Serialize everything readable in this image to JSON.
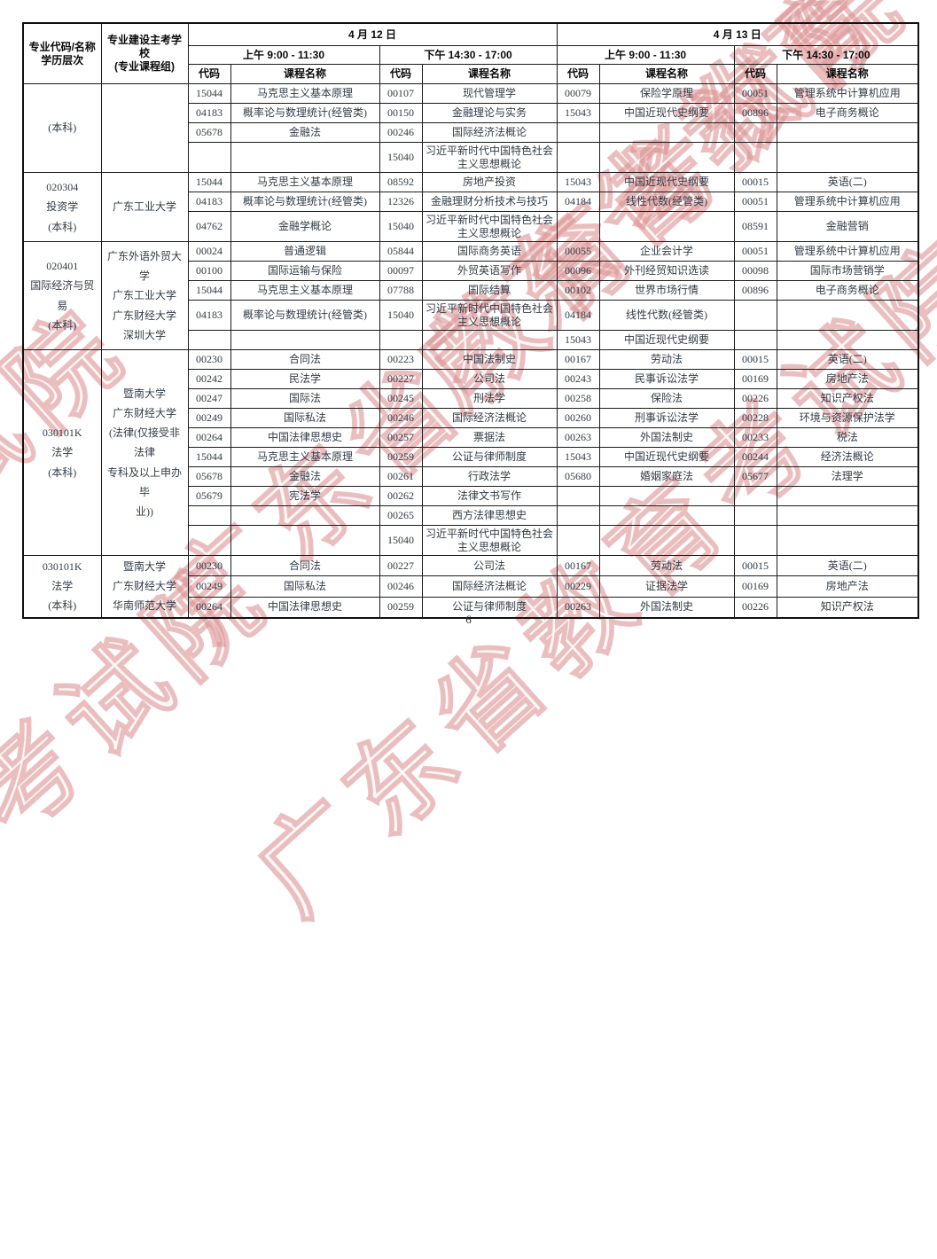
{
  "document": {
    "page_number": "6"
  },
  "watermark": {
    "text": "广东省教育考试院",
    "color": "#db9090"
  },
  "table": {
    "headers": {
      "major_line1": "专业代码/名称",
      "major_line2": "学历层次",
      "school_line1": "专业建设主考学校",
      "school_line2": "(专业课程组)",
      "date_apr12": "4 月 12 日",
      "date_apr13": "4 月 13 日",
      "session_am_label": "上午",
      "session_am_time": "9:00 - 11:30",
      "session_pm_label": "下午",
      "session_pm_time": "14:30 - 17:00",
      "code_label": "代码",
      "course_label": "课程名称"
    },
    "groups": [
      {
        "major": [
          "(本科)"
        ],
        "major_align": "top",
        "school": [],
        "rows": [
          {
            "cells": [
              [
                "15044",
                "马克思主义基本原理"
              ],
              [
                "00107",
                "现代管理学"
              ],
              [
                "00079",
                "保险学原理"
              ],
              [
                "00051",
                "管理系统中计算机应用"
              ]
            ]
          },
          {
            "cells": [
              [
                "04183",
                "概率论与数理统计(经管类)"
              ],
              [
                "00150",
                "金融理论与实务"
              ],
              [
                "15043",
                "中国近现代史纲要"
              ],
              [
                "00896",
                "电子商务概论"
              ]
            ]
          },
          {
            "cells": [
              [
                "05678",
                "金融法"
              ],
              [
                "00246",
                "国际经济法概论"
              ],
              [
                "",
                ""
              ],
              [
                "",
                ""
              ]
            ]
          },
          {
            "tall": true,
            "cells": [
              [
                "",
                ""
              ],
              [
                "15040",
                "习近平新时代中国特色社会主义思想概论"
              ],
              [
                "",
                ""
              ],
              [
                "",
                ""
              ]
            ]
          }
        ]
      },
      {
        "major": [
          "020304",
          "投资学",
          "(本科)"
        ],
        "school": [
          "广东工业大学"
        ],
        "rows": [
          {
            "cells": [
              [
                "15044",
                "马克思主义基本原理"
              ],
              [
                "08592",
                "房地产投资"
              ],
              [
                "15043",
                "中国近现代史纲要"
              ],
              [
                "00015",
                "英语(二)"
              ]
            ]
          },
          {
            "cells": [
              [
                "04183",
                "概率论与数理统计(经管类)"
              ],
              [
                "12326",
                "金融理财分析技术与技巧"
              ],
              [
                "04184",
                "线性代数(经管类)"
              ],
              [
                "00051",
                "管理系统中计算机应用"
              ]
            ]
          },
          {
            "tall": true,
            "cells": [
              [
                "04762",
                "金融学概论"
              ],
              [
                "15040",
                "习近平新时代中国特色社会主义思想概论"
              ],
              [
                "",
                ""
              ],
              [
                "08591",
                "金融营销"
              ]
            ]
          }
        ]
      },
      {
        "major": [
          "020401",
          "国际经济与贸",
          "易",
          "(本科)"
        ],
        "school": [
          "广东外语外贸大学",
          "广东工业大学",
          "广东财经大学",
          "深圳大学"
        ],
        "rows": [
          {
            "cells": [
              [
                "00024",
                "普通逻辑"
              ],
              [
                "05844",
                "国际商务英语"
              ],
              [
                "00055",
                "企业会计学"
              ],
              [
                "00051",
                "管理系统中计算机应用"
              ]
            ]
          },
          {
            "cells": [
              [
                "00100",
                "国际运输与保险"
              ],
              [
                "00097",
                "外贸英语写作"
              ],
              [
                "00096",
                "外刊经贸知识选读"
              ],
              [
                "00098",
                "国际市场营销学"
              ]
            ]
          },
          {
            "cells": [
              [
                "15044",
                "马克思主义基本原理"
              ],
              [
                "07788",
                "国际结算"
              ],
              [
                "00102",
                "世界市场行情"
              ],
              [
                "00896",
                "电子商务概论"
              ]
            ]
          },
          {
            "tall": true,
            "cells": [
              [
                "04183",
                "概率论与数理统计(经管类)"
              ],
              [
                "15040",
                "习近平新时代中国特色社会主义思想概论"
              ],
              [
                "04184",
                "线性代数(经管类)"
              ],
              [
                "",
                ""
              ]
            ]
          },
          {
            "cells": [
              [
                "",
                ""
              ],
              [
                "",
                ""
              ],
              [
                "15043",
                "中国近现代史纲要"
              ],
              [
                "",
                ""
              ]
            ]
          }
        ]
      },
      {
        "major": [
          "030101K",
          "法学",
          "(本科)"
        ],
        "school": [
          "暨南大学",
          "广东财经大学",
          "(法律(仅接受非法律",
          "专科及以上申办毕",
          "业))"
        ],
        "rows": [
          {
            "cells": [
              [
                "00230",
                "合同法"
              ],
              [
                "00223",
                "中国法制史"
              ],
              [
                "00167",
                "劳动法"
              ],
              [
                "00015",
                "英语(二)"
              ]
            ]
          },
          {
            "cells": [
              [
                "00242",
                "民法学"
              ],
              [
                "00227",
                "公司法"
              ],
              [
                "00243",
                "民事诉讼法学"
              ],
              [
                "00169",
                "房地产法"
              ]
            ]
          },
          {
            "cells": [
              [
                "00247",
                "国际法"
              ],
              [
                "00245",
                "刑法学"
              ],
              [
                "00258",
                "保险法"
              ],
              [
                "00226",
                "知识产权法"
              ]
            ]
          },
          {
            "cells": [
              [
                "00249",
                "国际私法"
              ],
              [
                "00246",
                "国际经济法概论"
              ],
              [
                "00260",
                "刑事诉讼法学"
              ],
              [
                "00228",
                "环境与资源保护法学"
              ]
            ]
          },
          {
            "cells": [
              [
                "00264",
                "中国法律思想史"
              ],
              [
                "00257",
                "票据法"
              ],
              [
                "00263",
                "外国法制史"
              ],
              [
                "00233",
                "税法"
              ]
            ]
          },
          {
            "cells": [
              [
                "15044",
                "马克思主义基本原理"
              ],
              [
                "00259",
                "公证与律师制度"
              ],
              [
                "15043",
                "中国近现代史纲要"
              ],
              [
                "00244",
                "经济法概论"
              ]
            ]
          },
          {
            "cells": [
              [
                "05678",
                "金融法"
              ],
              [
                "00261",
                "行政法学"
              ],
              [
                "05680",
                "婚姻家庭法"
              ],
              [
                "05677",
                "法理学"
              ]
            ]
          },
          {
            "cells": [
              [
                "05679",
                "宪法学"
              ],
              [
                "00262",
                "法律文书写作"
              ],
              [
                "",
                ""
              ],
              [
                "",
                ""
              ]
            ]
          },
          {
            "cells": [
              [
                "",
                ""
              ],
              [
                "00265",
                "西方法律思想史"
              ],
              [
                "",
                ""
              ],
              [
                "",
                ""
              ]
            ]
          },
          {
            "tall": true,
            "cells": [
              [
                "",
                ""
              ],
              [
                "15040",
                "习近平新时代中国特色社会主义思想概论"
              ],
              [
                "",
                ""
              ],
              [
                "",
                ""
              ]
            ]
          }
        ]
      },
      {
        "major": [
          "030101K",
          "法学",
          "(本科)"
        ],
        "school": [
          "暨南大学",
          "广东财经大学",
          "华南师范大学"
        ],
        "rows": [
          {
            "cells": [
              [
                "00230",
                "合同法"
              ],
              [
                "00227",
                "公司法"
              ],
              [
                "00167",
                "劳动法"
              ],
              [
                "00015",
                "英语(二)"
              ]
            ]
          },
          {
            "cells": [
              [
                "00249",
                "国际私法"
              ],
              [
                "00246",
                "国际经济法概论"
              ],
              [
                "00229",
                "证据法学"
              ],
              [
                "00169",
                "房地产法"
              ]
            ]
          },
          {
            "cells": [
              [
                "00264",
                "中国法律思想史"
              ],
              [
                "00259",
                "公证与律师制度"
              ],
              [
                "00263",
                "外国法制史"
              ],
              [
                "00226",
                "知识产权法"
              ]
            ]
          }
        ]
      }
    ]
  }
}
